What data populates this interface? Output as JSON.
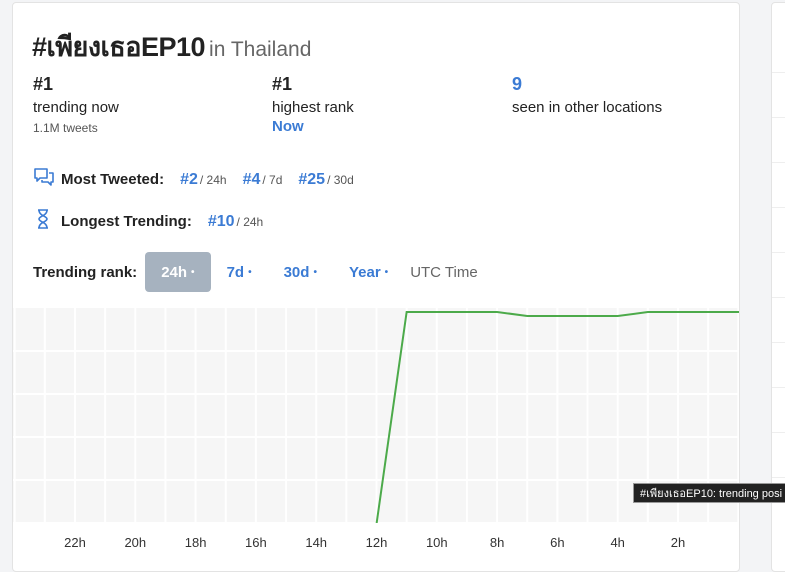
{
  "header": {
    "hashtag": "#เพียงเธอEP10",
    "location": "in Thailand"
  },
  "stats": {
    "trending": {
      "value": "#1",
      "label": "trending now",
      "sub": "1.1M tweets"
    },
    "highest": {
      "value": "#1",
      "label": "highest rank",
      "when": "Now"
    },
    "other": {
      "value": "9",
      "label": "seen in other locations"
    }
  },
  "most_tweeted": {
    "label": "Most Tweeted:",
    "icon": "chat-bubbles-icon",
    "items": [
      {
        "rank": "#2",
        "period": "/ 24h"
      },
      {
        "rank": "#4",
        "period": "/ 7d"
      },
      {
        "rank": "#25",
        "period": "/ 30d"
      }
    ]
  },
  "longest_trending": {
    "label": "Longest Trending:",
    "icon": "hourglass-icon",
    "items": [
      {
        "rank": "#10",
        "period": "/ 24h"
      }
    ]
  },
  "rank_selector": {
    "label": "Trending rank:",
    "options": [
      "24h",
      "7d",
      "30d",
      "Year"
    ],
    "selected": "24h",
    "dot": "•",
    "timezone": "UTC Time"
  },
  "tooltip": {
    "text": "#เพียงเธอEP10: trending posi"
  },
  "colors": {
    "accent": "#3b7bd4",
    "line": "#4caa4a",
    "active_button": "#a6b2bf"
  },
  "chart_data": {
    "type": "line",
    "x_tick_labels": [
      "22h",
      "20h",
      "18h",
      "16h",
      "14h",
      "12h",
      "10h",
      "8h",
      "6h",
      "4h",
      "2h"
    ],
    "x_hours_ago": [
      23.0,
      12.0,
      11.0,
      10.0,
      9.0,
      8.0,
      7.0,
      6.0,
      5.0,
      4.0,
      3.0,
      2.0,
      1.0,
      0.0
    ],
    "rank": [
      null,
      null,
      1,
      1,
      1,
      1,
      1.1,
      1.1,
      1.1,
      1.1,
      1,
      1,
      1,
      1
    ],
    "entry_from_bottom": true,
    "grid": true
  }
}
